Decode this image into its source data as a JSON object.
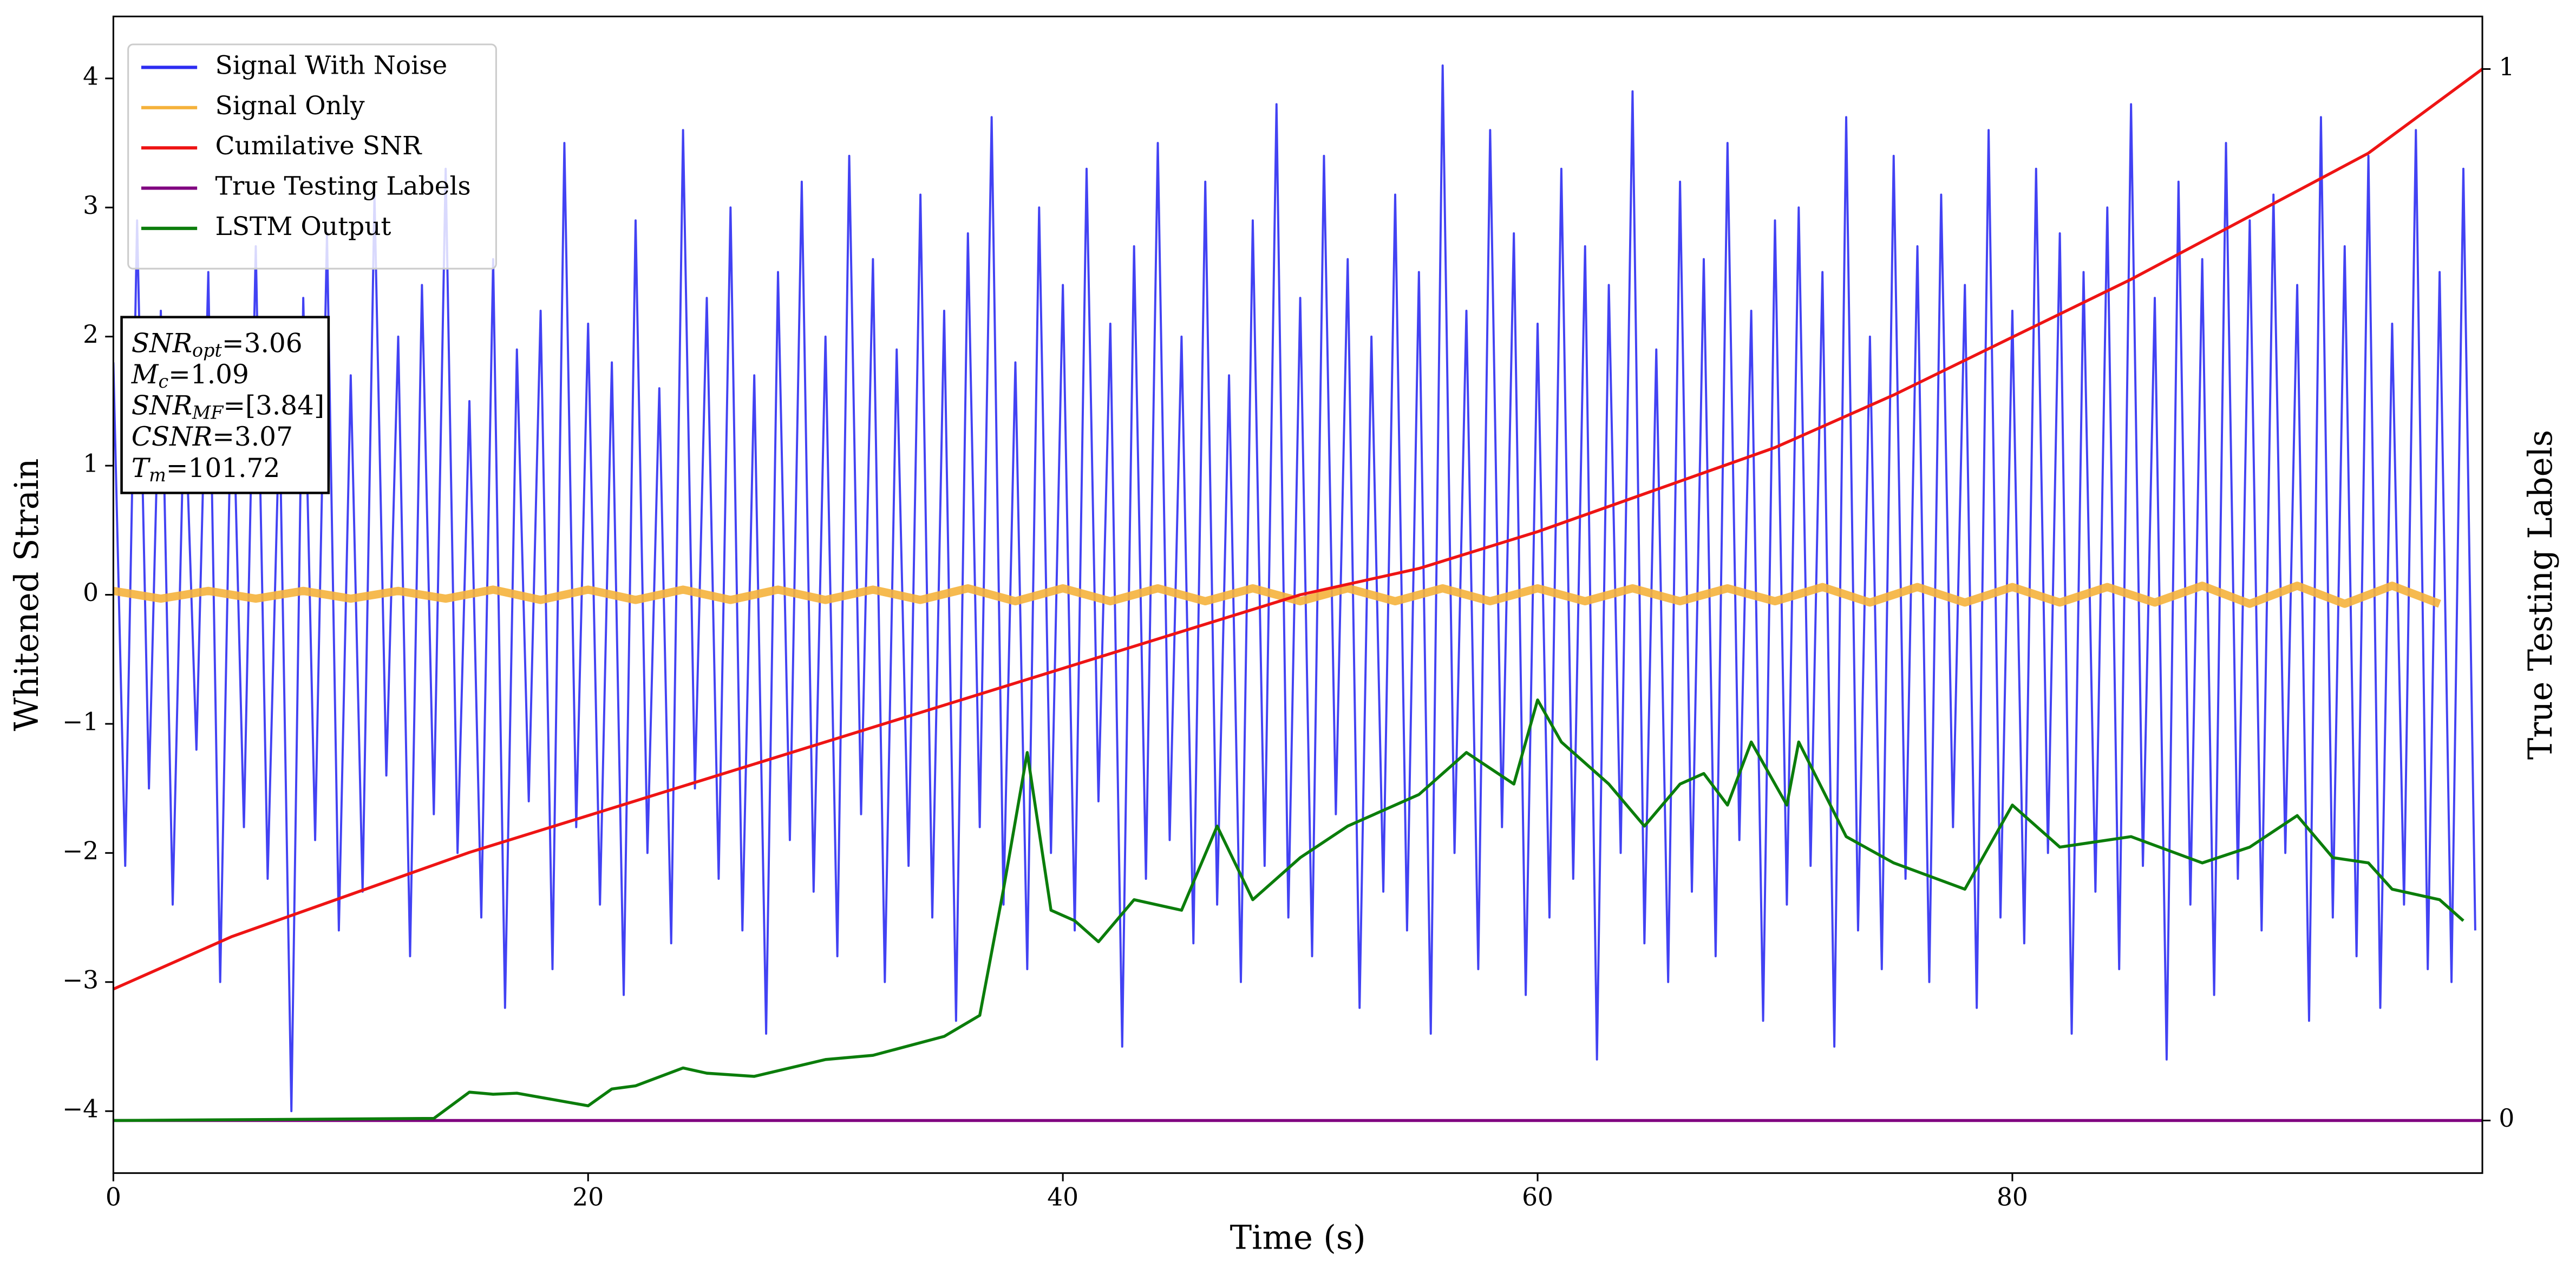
{
  "chart_data": {
    "type": "line",
    "xlabel": "Time (s)",
    "ylabel": "Whitened Strain",
    "y2label": "True Testing Labels",
    "xlim": [
      0,
      99.8
    ],
    "xticks": [
      0,
      20,
      40,
      60,
      80
    ],
    "ylim": [
      -4.48,
      4.48
    ],
    "yticks": [
      -4,
      -3,
      -2,
      -1,
      0,
      1,
      2,
      3,
      4
    ],
    "y2lim": [
      -0.05,
      1.05
    ],
    "y2ticks": [
      0,
      1
    ],
    "legend": "upper left",
    "annotation": [
      {
        "var": "SNR",
        "sub": "opt",
        "value": "=3.06"
      },
      {
        "var": "M",
        "sub": "c",
        "value": "=1.09"
      },
      {
        "var": "SNR",
        "sub": "MF",
        "value": "=[3.84]"
      },
      {
        "var": "CSNR",
        "value": "=3.07"
      },
      {
        "var": "T",
        "sub": "m",
        "value": "=101.72"
      }
    ],
    "series": [
      {
        "name": "Signal With Noise",
        "color": "#2d2df2",
        "axis": "y",
        "x": [
          0,
          0.5,
          1,
          1.5,
          2,
          2.5,
          3,
          3.5,
          4,
          4.5,
          5,
          5.5,
          6,
          6.5,
          7,
          7.5,
          8,
          8.5,
          9,
          9.5,
          10,
          10.5,
          11,
          11.5,
          12,
          12.5,
          13,
          13.5,
          14,
          14.5,
          15,
          15.5,
          16,
          16.5,
          17,
          17.5,
          18,
          18.5,
          19,
          19.5,
          20,
          20.5,
          21,
          21.5,
          22,
          22.5,
          23,
          23.5,
          24,
          24.5,
          25,
          25.5,
          26,
          26.5,
          27,
          27.5,
          28,
          28.5,
          29,
          29.5,
          30,
          30.5,
          31,
          31.5,
          32,
          32.5,
          33,
          33.5,
          34,
          34.5,
          35,
          35.5,
          36,
          36.5,
          37,
          37.5,
          38,
          38.5,
          39,
          39.5,
          40,
          40.5,
          41,
          41.5,
          42,
          42.5,
          43,
          43.5,
          44,
          44.5,
          45,
          45.5,
          46,
          46.5,
          47,
          47.5,
          48,
          48.5,
          49,
          49.5,
          50,
          50.5,
          51,
          51.5,
          52,
          52.5,
          53,
          53.5,
          54,
          54.5,
          55,
          55.5,
          56,
          56.5,
          57,
          57.5,
          58,
          58.5,
          59,
          59.5,
          60,
          60.5,
          61,
          61.5,
          62,
          62.5,
          63,
          63.5,
          64,
          64.5,
          65,
          65.5,
          66,
          66.5,
          67,
          67.5,
          68,
          68.5,
          69,
          69.5,
          70,
          70.5,
          71,
          71.5,
          72,
          72.5,
          73,
          73.5,
          74,
          74.5,
          75,
          75.5,
          76,
          76.5,
          77,
          77.5,
          78,
          78.5,
          79,
          79.5,
          80,
          80.5,
          81,
          81.5,
          82,
          82.5,
          83,
          83.5,
          84,
          84.5,
          85,
          85.5,
          86,
          86.5,
          87,
          87.5,
          88,
          88.5,
          89,
          89.5,
          90,
          90.5,
          91,
          91.5,
          92,
          92.5,
          93,
          93.5,
          94,
          94.5,
          95,
          95.5,
          96,
          96.5,
          97,
          97.5,
          98,
          98.5,
          99,
          99.5
        ],
        "values": [
          1.8,
          -2.1,
          2.9,
          -1.5,
          2.2,
          -2.4,
          1.6,
          -1.2,
          2.5,
          -3.0,
          1.9,
          -1.8,
          2.7,
          -2.2,
          1.4,
          -4.0,
          2.3,
          -1.9,
          2.8,
          -2.6,
          1.7,
          -2.3,
          3.1,
          -1.4,
          2.0,
          -2.8,
          2.4,
          -1.7,
          3.3,
          -2.0,
          1.5,
          -2.5,
          2.6,
          -3.2,
          1.9,
          -1.6,
          2.2,
          -2.9,
          3.5,
          -1.8,
          2.1,
          -2.4,
          1.8,
          -3.1,
          2.9,
          -2.0,
          1.6,
          -2.7,
          3.6,
          -1.5,
          2.3,
          -2.2,
          3.0,
          -2.6,
          1.7,
          -3.4,
          2.5,
          -1.9,
          3.2,
          -2.3,
          2.0,
          -2.8,
          3.4,
          -1.7,
          2.6,
          -3.0,
          1.9,
          -2.1,
          3.1,
          -2.5,
          2.2,
          -3.3,
          2.8,
          -1.8,
          3.7,
          -2.4,
          1.8,
          -2.9,
          3.0,
          -2.0,
          2.4,
          -2.6,
          3.3,
          -1.6,
          2.1,
          -3.5,
          2.7,
          -2.2,
          3.5,
          -1.9,
          2.0,
          -2.7,
          3.2,
          -2.4,
          1.7,
          -3.0,
          2.9,
          -2.1,
          3.8,
          -2.5,
          2.3,
          -2.8,
          3.4,
          -1.7,
          2.6,
          -3.2,
          2.0,
          -2.3,
          3.1,
          -2.6,
          2.5,
          -3.4,
          4.1,
          -2.0,
          2.2,
          -2.9,
          3.6,
          -1.8,
          2.8,
          -3.1,
          2.1,
          -2.5,
          3.3,
          -2.2,
          2.7,
          -3.6,
          2.4,
          -2.0,
          3.9,
          -2.7,
          1.9,
          -3.0,
          3.2,
          -2.3,
          2.6,
          -2.8,
          3.5,
          -1.9,
          2.2,
          -3.3,
          2.9,
          -2.4,
          3.0,
          -2.1,
          2.5,
          -3.5,
          3.7,
          -2.6,
          2.0,
          -2.9,
          3.4,
          -2.2,
          2.7,
          -3.0,
          3.1,
          -1.8,
          2.4,
          -3.2,
          3.6,
          -2.5,
          2.2,
          -2.7,
          3.3,
          -2.0,
          2.8,
          -3.4,
          2.5,
          -2.3,
          3.0,
          -2.9,
          3.8,
          -2.1,
          2.3,
          -3.6,
          3.2,
          -2.4,
          2.6,
          -3.1,
          3.5,
          -2.2,
          2.9,
          -2.6,
          3.1,
          -2.0,
          2.4,
          -3.3,
          3.7,
          -2.5,
          2.7,
          -2.8,
          3.4,
          -3.2,
          2.1,
          -2.4,
          3.6,
          -2.9,
          2.5,
          -3.0,
          3.3,
          -2.6
        ]
      },
      {
        "name": "Signal Only",
        "color": "#f5b23c",
        "axis": "y",
        "x": [
          0,
          2,
          4,
          6,
          8,
          10,
          12,
          14,
          16,
          18,
          20,
          22,
          24,
          26,
          28,
          30,
          32,
          34,
          36,
          38,
          40,
          42,
          44,
          46,
          48,
          50,
          52,
          54,
          56,
          58,
          60,
          62,
          64,
          66,
          68,
          70,
          72,
          74,
          76,
          78,
          80,
          82,
          84,
          86,
          88,
          90,
          92,
          94,
          96,
          98
        ],
        "values": [
          0.03,
          -0.03,
          0.03,
          -0.03,
          0.03,
          -0.03,
          0.03,
          -0.03,
          0.04,
          -0.04,
          0.04,
          -0.04,
          0.04,
          -0.04,
          0.04,
          -0.04,
          0.04,
          -0.04,
          0.05,
          -0.05,
          0.05,
          -0.05,
          0.05,
          -0.05,
          0.05,
          -0.05,
          0.05,
          -0.05,
          0.05,
          -0.05,
          0.05,
          -0.05,
          0.05,
          -0.05,
          0.05,
          -0.05,
          0.06,
          -0.06,
          0.06,
          -0.06,
          0.06,
          -0.06,
          0.06,
          -0.06,
          0.07,
          -0.07,
          0.07,
          -0.07,
          0.07,
          -0.07
        ]
      },
      {
        "name": "Cumilative SNR",
        "color": "#ee1414",
        "axis": "y2",
        "x": [
          0,
          5,
          10,
          15,
          20,
          25,
          30,
          35,
          40,
          45,
          50,
          55,
          60,
          65,
          70,
          75,
          80,
          85,
          90,
          95,
          99.8
        ],
        "values": [
          0.125,
          0.175,
          0.215,
          0.255,
          0.29,
          0.325,
          0.36,
          0.395,
          0.43,
          0.465,
          0.5,
          0.525,
          0.56,
          0.6,
          0.64,
          0.69,
          0.745,
          0.8,
          0.86,
          0.92,
          1.0
        ]
      },
      {
        "name": "True Testing Labels",
        "color": "#800080",
        "axis": "y2",
        "x": [
          0,
          99.8
        ],
        "values": [
          0,
          0
        ]
      },
      {
        "name": "LSTM Output",
        "color": "#0b7d0b",
        "axis": "y2",
        "x": [
          0,
          13.5,
          15,
          16,
          17,
          19,
          20,
          21,
          22,
          24,
          25,
          27,
          30,
          32,
          35,
          36.5,
          37.5,
          38.5,
          39.5,
          40.5,
          41.5,
          43,
          45,
          46.5,
          48,
          50,
          52,
          55,
          57,
          59,
          60,
          61,
          63,
          64.5,
          66,
          67,
          68,
          69,
          70.5,
          71,
          73,
          75,
          78,
          80,
          82,
          85,
          88,
          90,
          92,
          93.5,
          95,
          96,
          98,
          99
        ],
        "values": [
          0,
          0.002,
          0.027,
          0.025,
          0.026,
          0.018,
          0.014,
          0.03,
          0.033,
          0.05,
          0.045,
          0.042,
          0.058,
          0.062,
          0.08,
          0.1,
          0.22,
          0.35,
          0.2,
          0.19,
          0.17,
          0.21,
          0.2,
          0.28,
          0.21,
          0.25,
          0.28,
          0.31,
          0.35,
          0.32,
          0.4,
          0.36,
          0.32,
          0.28,
          0.32,
          0.33,
          0.3,
          0.36,
          0.3,
          0.36,
          0.27,
          0.245,
          0.22,
          0.3,
          0.26,
          0.27,
          0.245,
          0.26,
          0.29,
          0.25,
          0.245,
          0.22,
          0.21,
          0.19
        ]
      }
    ]
  }
}
